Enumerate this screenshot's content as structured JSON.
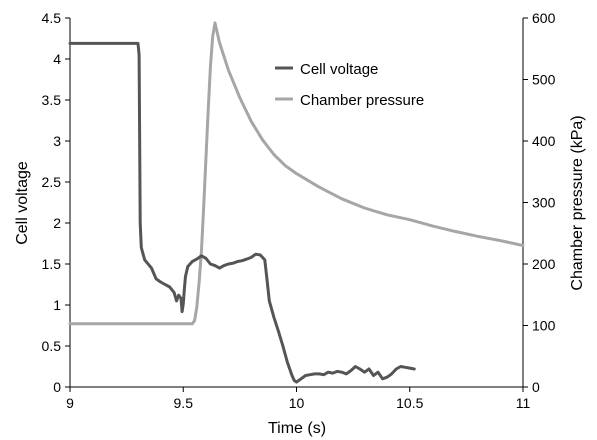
{
  "chart_data": {
    "type": "line",
    "title": "",
    "xlabel": "Time  (s)",
    "ylabel": "Cell voltage",
    "y2label": "Chamber pressure  (kPa)",
    "xlim": [
      9,
      11
    ],
    "ylim": [
      0,
      4.5
    ],
    "y2lim": [
      0,
      600
    ],
    "x_ticks": [
      "9",
      "9.5",
      "10",
      "10.5",
      "11"
    ],
    "y_ticks": [
      "0",
      "0.5",
      "1",
      "1.5",
      "2",
      "2.5",
      "3",
      "3.5",
      "4",
      "4.5"
    ],
    "y2_ticks": [
      "0",
      "100",
      "200",
      "300",
      "400",
      "500",
      "600"
    ],
    "grid": false,
    "legend_position": "top-right",
    "series": [
      {
        "name": "Cell voltage",
        "axis": "left",
        "color": "#555555",
        "points": [
          [
            9.0,
            4.19
          ],
          [
            9.3,
            4.19
          ],
          [
            9.305,
            4.05
          ],
          [
            9.31,
            2.0
          ],
          [
            9.315,
            1.7
          ],
          [
            9.33,
            1.55
          ],
          [
            9.36,
            1.45
          ],
          [
            9.38,
            1.32
          ],
          [
            9.4,
            1.28
          ],
          [
            9.42,
            1.25
          ],
          [
            9.44,
            1.22
          ],
          [
            9.46,
            1.15
          ],
          [
            9.47,
            1.05
          ],
          [
            9.48,
            1.12
          ],
          [
            9.49,
            1.08
          ],
          [
            9.495,
            0.92
          ],
          [
            9.5,
            1.02
          ],
          [
            9.505,
            1.2
          ],
          [
            9.51,
            1.35
          ],
          [
            9.52,
            1.47
          ],
          [
            9.54,
            1.53
          ],
          [
            9.56,
            1.56
          ],
          [
            9.58,
            1.6
          ],
          [
            9.6,
            1.57
          ],
          [
            9.62,
            1.5
          ],
          [
            9.64,
            1.48
          ],
          [
            9.66,
            1.45
          ],
          [
            9.68,
            1.48
          ],
          [
            9.7,
            1.5
          ],
          [
            9.72,
            1.51
          ],
          [
            9.74,
            1.53
          ],
          [
            9.76,
            1.54
          ],
          [
            9.78,
            1.56
          ],
          [
            9.8,
            1.58
          ],
          [
            9.82,
            1.62
          ],
          [
            9.84,
            1.61
          ],
          [
            9.86,
            1.55
          ],
          [
            9.87,
            1.3
          ],
          [
            9.88,
            1.05
          ],
          [
            9.9,
            0.85
          ],
          [
            9.92,
            0.68
          ],
          [
            9.94,
            0.5
          ],
          [
            9.96,
            0.3
          ],
          [
            9.98,
            0.14
          ],
          [
            9.99,
            0.08
          ],
          [
            10.0,
            0.06
          ],
          [
            10.02,
            0.1
          ],
          [
            10.04,
            0.14
          ],
          [
            10.06,
            0.15
          ],
          [
            10.08,
            0.16
          ],
          [
            10.1,
            0.16
          ],
          [
            10.12,
            0.15
          ],
          [
            10.14,
            0.18
          ],
          [
            10.16,
            0.17
          ],
          [
            10.18,
            0.19
          ],
          [
            10.2,
            0.18
          ],
          [
            10.22,
            0.16
          ],
          [
            10.24,
            0.2
          ],
          [
            10.26,
            0.25
          ],
          [
            10.28,
            0.22
          ],
          [
            10.3,
            0.18
          ],
          [
            10.32,
            0.22
          ],
          [
            10.34,
            0.14
          ],
          [
            10.36,
            0.18
          ],
          [
            10.38,
            0.1
          ],
          [
            10.4,
            0.12
          ],
          [
            10.42,
            0.16
          ],
          [
            10.44,
            0.22
          ],
          [
            10.46,
            0.25
          ],
          [
            10.48,
            0.24
          ],
          [
            10.5,
            0.23
          ],
          [
            10.52,
            0.22
          ]
        ]
      },
      {
        "name": "Chamber pressure",
        "axis": "right",
        "color": "#a6a6a6",
        "points": [
          [
            9.0,
            103
          ],
          [
            9.5,
            103
          ],
          [
            9.54,
            103
          ],
          [
            9.55,
            108
          ],
          [
            9.56,
            130
          ],
          [
            9.57,
            170
          ],
          [
            9.58,
            220
          ],
          [
            9.59,
            290
          ],
          [
            9.6,
            370
          ],
          [
            9.61,
            450
          ],
          [
            9.62,
            520
          ],
          [
            9.63,
            570
          ],
          [
            9.64,
            592
          ],
          [
            9.66,
            560
          ],
          [
            9.7,
            515
          ],
          [
            9.75,
            470
          ],
          [
            9.8,
            432
          ],
          [
            9.85,
            402
          ],
          [
            9.9,
            378
          ],
          [
            9.95,
            360
          ],
          [
            10.0,
            347
          ],
          [
            10.1,
            325
          ],
          [
            10.2,
            306
          ],
          [
            10.3,
            291
          ],
          [
            10.4,
            280
          ],
          [
            10.5,
            272
          ],
          [
            10.6,
            262
          ],
          [
            10.7,
            253
          ],
          [
            10.8,
            245
          ],
          [
            10.9,
            238
          ],
          [
            11.0,
            230
          ]
        ]
      }
    ]
  }
}
